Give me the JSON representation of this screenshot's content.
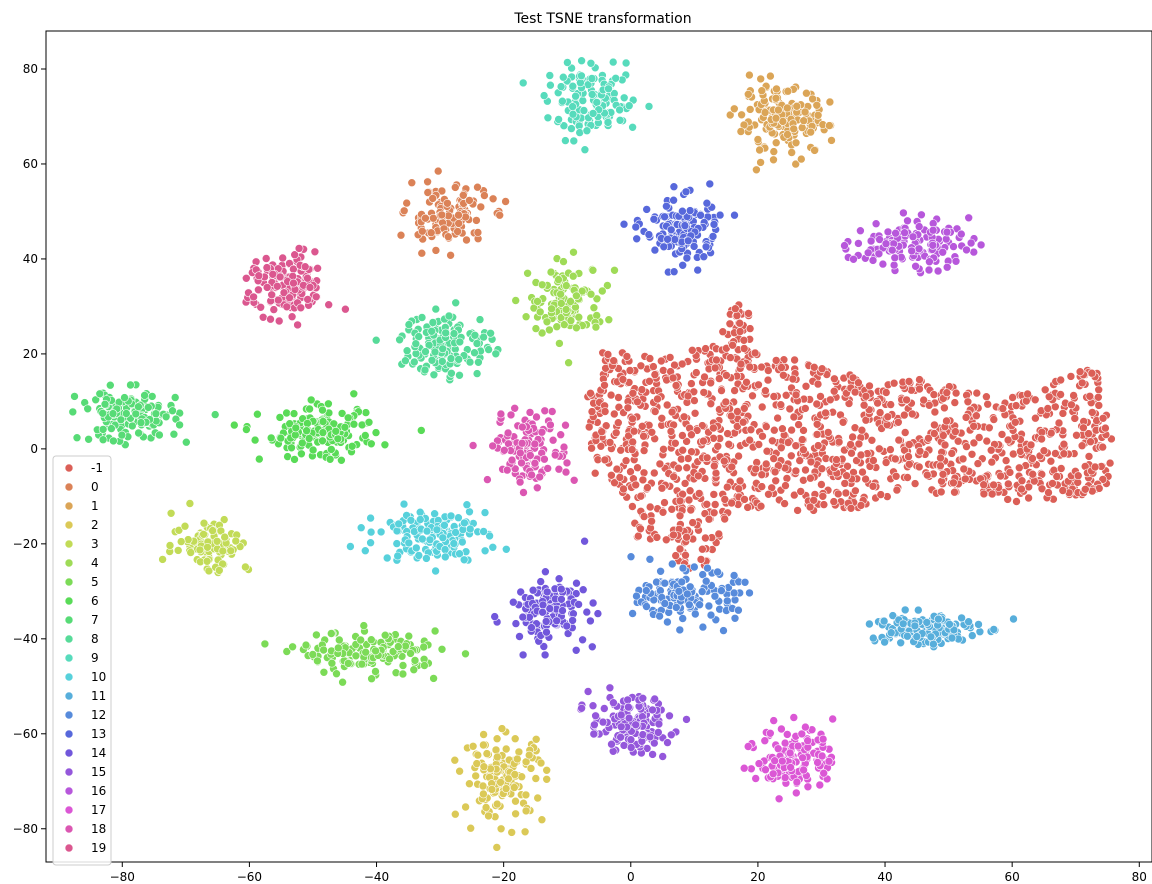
{
  "chart_data": {
    "type": "scatter",
    "title": "Test TSNE transformation",
    "xlabel": "",
    "ylabel": "",
    "xlim": [
      -92,
      82
    ],
    "ylim": [
      -87,
      88
    ],
    "x_ticks": [
      -80,
      -60,
      -40,
      -20,
      0,
      20,
      40,
      60,
      80
    ],
    "y_ticks": [
      -80,
      -60,
      -40,
      -20,
      0,
      20,
      40,
      60,
      80
    ],
    "grid": false,
    "legend_position": "lower-left",
    "legend": [
      {
        "label": "-1",
        "color": "#db5f57"
      },
      {
        "label": "0",
        "color": "#db8257"
      },
      {
        "label": "1",
        "color": "#dba557"
      },
      {
        "label": "2",
        "color": "#dbc957"
      },
      {
        "label": "3",
        "color": "#c2db57"
      },
      {
        "label": "4",
        "color": "#9fdb57"
      },
      {
        "label": "5",
        "color": "#7cdb57"
      },
      {
        "label": "6",
        "color": "#59db57"
      },
      {
        "label": "7",
        "color": "#57db76"
      },
      {
        "label": "8",
        "color": "#57db99"
      },
      {
        "label": "9",
        "color": "#57dbbc"
      },
      {
        "label": "10",
        "color": "#57d1db"
      },
      {
        "label": "11",
        "color": "#57aedb"
      },
      {
        "label": "12",
        "color": "#578bdb"
      },
      {
        "label": "13",
        "color": "#5768db"
      },
      {
        "label": "14",
        "color": "#7157db"
      },
      {
        "label": "15",
        "color": "#9457db"
      },
      {
        "label": "16",
        "color": "#b757db"
      },
      {
        "label": "17",
        "color": "#db57d5"
      },
      {
        "label": "18",
        "color": "#db57b2"
      },
      {
        "label": "19",
        "color": "#db578f"
      }
    ],
    "clusters": [
      {
        "label": "0",
        "center": [
          -29,
          49
        ],
        "spread": [
          3.2,
          3.2
        ],
        "n": 130
      },
      {
        "label": "1",
        "center": [
          24,
          69
        ],
        "spread": [
          3.6,
          3.4
        ],
        "n": 160
      },
      {
        "label": "2",
        "center": [
          -20,
          -69
        ],
        "spread": [
          3.2,
          4.5
        ],
        "n": 140
      },
      {
        "label": "3",
        "center": [
          -66,
          -20
        ],
        "spread": [
          3.0,
          3.0
        ],
        "n": 90
      },
      {
        "label": "4",
        "center": [
          -10,
          31
        ],
        "spread": [
          3.0,
          3.8
        ],
        "n": 120
      },
      {
        "label": "5",
        "center": [
          -41,
          -43
        ],
        "spread": [
          5.5,
          2.2
        ],
        "n": 150
      },
      {
        "label": "6",
        "center": [
          -49,
          3
        ],
        "spread": [
          4.5,
          2.6
        ],
        "n": 150
      },
      {
        "label": "7",
        "center": [
          -79,
          7
        ],
        "spread": [
          3.8,
          2.7
        ],
        "n": 150
      },
      {
        "label": "8",
        "center": [
          -29,
          22
        ],
        "spread": [
          3.6,
          3.4
        ],
        "n": 150
      },
      {
        "label": "9",
        "center": [
          -6,
          73
        ],
        "spread": [
          3.6,
          3.4
        ],
        "n": 140
      },
      {
        "label": "10",
        "center": [
          -31,
          -18
        ],
        "spread": [
          4.2,
          2.7
        ],
        "n": 150
      },
      {
        "label": "11",
        "center": [
          46,
          -38
        ],
        "spread": [
          4.3,
          1.8
        ],
        "n": 150
      },
      {
        "label": "12",
        "center": [
          9,
          -31
        ],
        "spread": [
          3.8,
          2.6
        ],
        "n": 150
      },
      {
        "label": "13",
        "center": [
          8,
          46
        ],
        "spread": [
          3.0,
          3.6
        ],
        "n": 140
      },
      {
        "label": "14",
        "center": [
          -13,
          -34
        ],
        "spread": [
          3.0,
          3.4
        ],
        "n": 140
      },
      {
        "label": "15",
        "center": [
          0,
          -58
        ],
        "spread": [
          3.2,
          3.0
        ],
        "n": 140
      },
      {
        "label": "16",
        "center": [
          44,
          43
        ],
        "spread": [
          4.5,
          2.6
        ],
        "n": 130
      },
      {
        "label": "17",
        "center": [
          26,
          -65
        ],
        "spread": [
          3.0,
          3.4
        ],
        "n": 140
      },
      {
        "label": "18",
        "center": [
          -16,
          0
        ],
        "spread": [
          3.0,
          3.8
        ],
        "n": 140
      },
      {
        "label": "19",
        "center": [
          -54,
          34
        ],
        "spread": [
          3.0,
          3.4
        ],
        "n": 150
      }
    ],
    "noise_region": {
      "label": "-1",
      "n": 1350,
      "polygon": [
        [
          -7,
          10
        ],
        [
          -5,
          21
        ],
        [
          5,
          19
        ],
        [
          14,
          23
        ],
        [
          16,
          31
        ],
        [
          20,
          29
        ],
        [
          19,
          21
        ],
        [
          28,
          18
        ],
        [
          39,
          14
        ],
        [
          48,
          15
        ],
        [
          58,
          10
        ],
        [
          66,
          14
        ],
        [
          73,
          19
        ],
        [
          76,
          0
        ],
        [
          75,
          -9
        ],
        [
          62,
          -12
        ],
        [
          54,
          -9
        ],
        [
          44,
          -10
        ],
        [
          35,
          -13
        ],
        [
          26,
          -13
        ],
        [
          18,
          -13
        ],
        [
          14,
          -18
        ],
        [
          13,
          -25
        ],
        [
          8,
          -26
        ],
        [
          5,
          -19
        ],
        [
          1,
          -19
        ],
        [
          -1,
          -10
        ],
        [
          -6,
          -5
        ]
      ]
    }
  }
}
